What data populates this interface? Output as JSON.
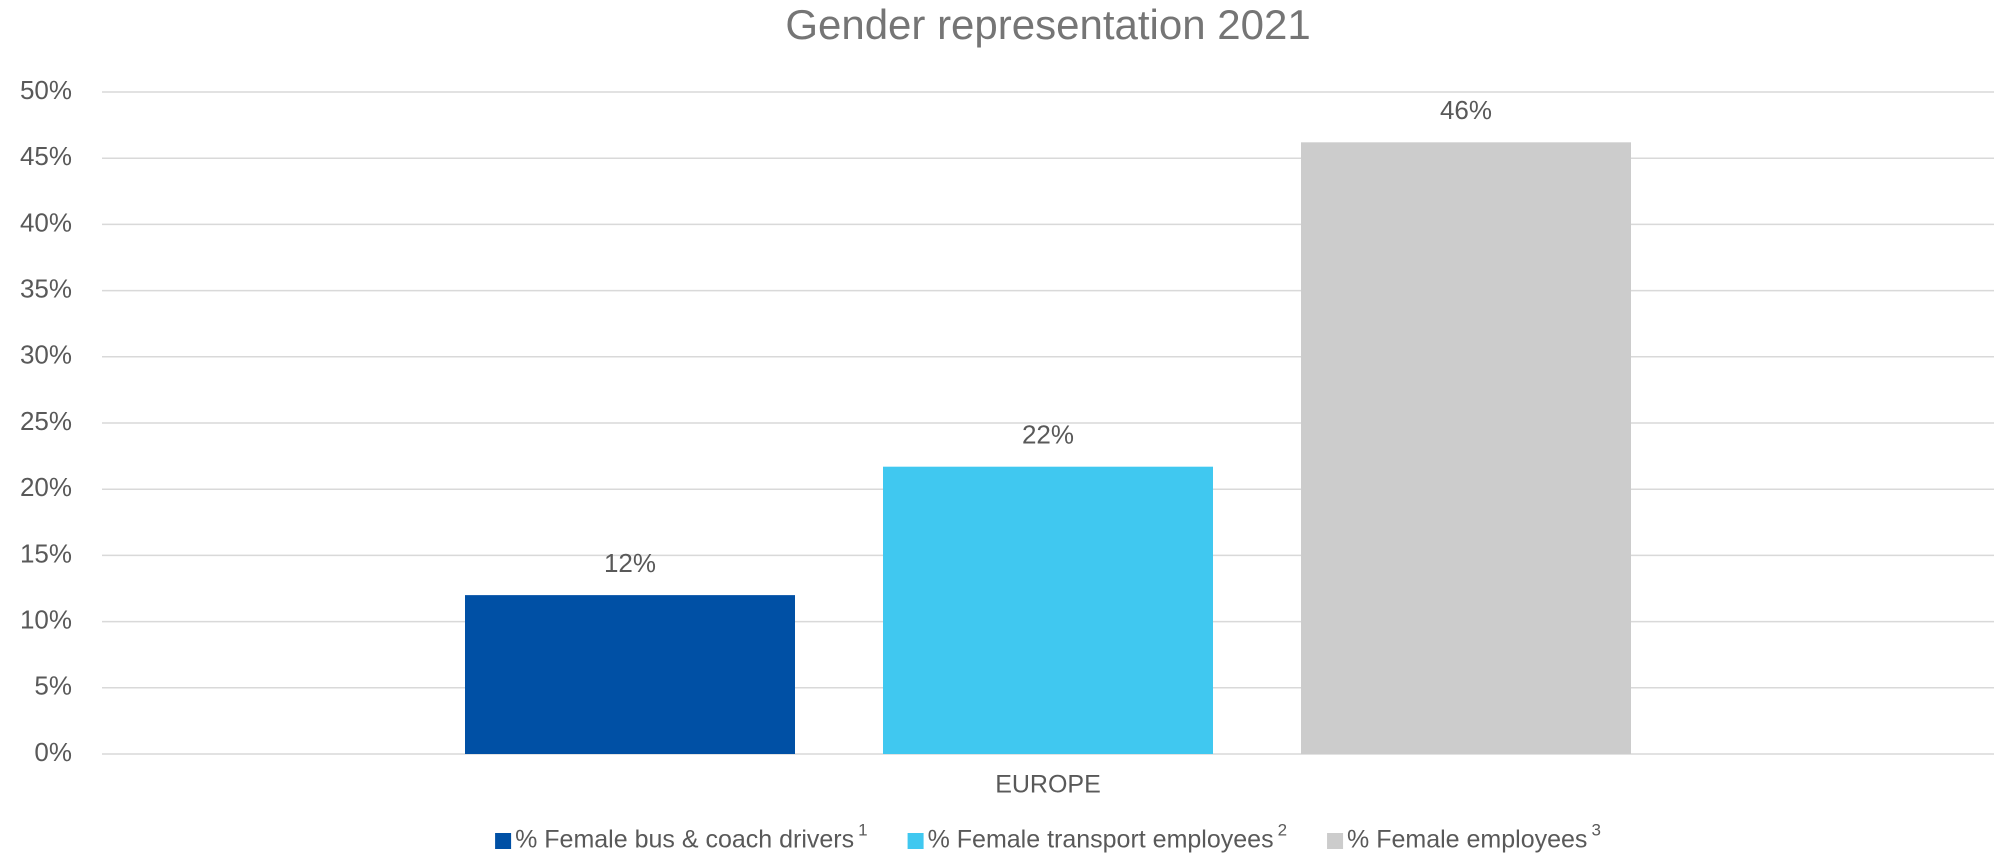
{
  "chart_data": {
    "type": "bar",
    "title": "Gender representation 2021",
    "categories": [
      "EUROPE"
    ],
    "series": [
      {
        "name": "% Female bus & coach drivers",
        "footnote": "1",
        "color": "#0050a5",
        "values": [
          12
        ],
        "value_labels": [
          "12%"
        ]
      },
      {
        "name": "% Female transport employees",
        "footnote": "2",
        "color": "#40c8f0",
        "values": [
          21.7
        ],
        "value_labels": [
          "22%"
        ]
      },
      {
        "name": "% Female employees",
        "footnote": "3",
        "color": "#cccccc",
        "values": [
          46.2
        ],
        "value_labels": [
          "46%"
        ]
      }
    ],
    "ylim": [
      0,
      50
    ],
    "yticks": [
      {
        "value": 0,
        "label": "0%"
      },
      {
        "value": 5,
        "label": "5%"
      },
      {
        "value": 10,
        "label": "10%"
      },
      {
        "value": 15,
        "label": "15%"
      },
      {
        "value": 20,
        "label": "20%"
      },
      {
        "value": 25,
        "label": "25%"
      },
      {
        "value": 30,
        "label": "30%"
      },
      {
        "value": 35,
        "label": "35%"
      },
      {
        "value": 40,
        "label": "40%"
      },
      {
        "value": 45,
        "label": "45%"
      },
      {
        "value": 50,
        "label": "50%"
      }
    ],
    "grid": true,
    "legend": "bottom"
  }
}
